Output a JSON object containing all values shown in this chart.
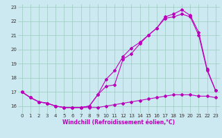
{
  "x_labels": [
    0,
    1,
    2,
    3,
    4,
    5,
    6,
    7,
    8,
    9,
    10,
    11,
    12,
    13,
    14,
    15,
    16,
    17,
    18,
    19,
    20,
    21,
    22,
    23
  ],
  "line1_y": [
    17.0,
    16.6,
    16.3,
    16.2,
    16.0,
    15.9,
    15.9,
    15.9,
    15.9,
    15.9,
    16.0,
    16.1,
    16.2,
    16.3,
    16.4,
    16.5,
    16.6,
    16.7,
    16.8,
    16.8,
    16.8,
    16.7,
    16.7,
    16.6
  ],
  "line2_y": [
    17.0,
    16.6,
    16.3,
    16.2,
    16.0,
    15.9,
    15.9,
    15.9,
    16.0,
    16.8,
    17.4,
    17.5,
    19.3,
    19.7,
    20.4,
    21.0,
    21.5,
    22.2,
    22.3,
    22.5,
    22.3,
    21.0,
    18.5,
    17.1
  ],
  "line3_y": [
    17.0,
    16.6,
    16.3,
    16.2,
    16.0,
    15.9,
    15.9,
    15.9,
    16.0,
    16.8,
    17.9,
    18.5,
    19.5,
    20.1,
    20.5,
    21.0,
    21.5,
    22.3,
    22.5,
    22.8,
    22.4,
    21.2,
    18.6,
    17.1
  ],
  "color": "#bb00bb",
  "bg_color": "#cce8f0",
  "grid_color": "#99ccbb",
  "xlabel": "Windchill (Refroidissement éolien,°C)",
  "ylim": [
    15.5,
    23.2
  ],
  "xlim": [
    -0.5,
    23.5
  ],
  "yticks": [
    16,
    17,
    18,
    19,
    20,
    21,
    22,
    23
  ],
  "ylabel_fontsize": 5,
  "xlabel_fontsize": 5.5,
  "tick_fontsize": 5
}
